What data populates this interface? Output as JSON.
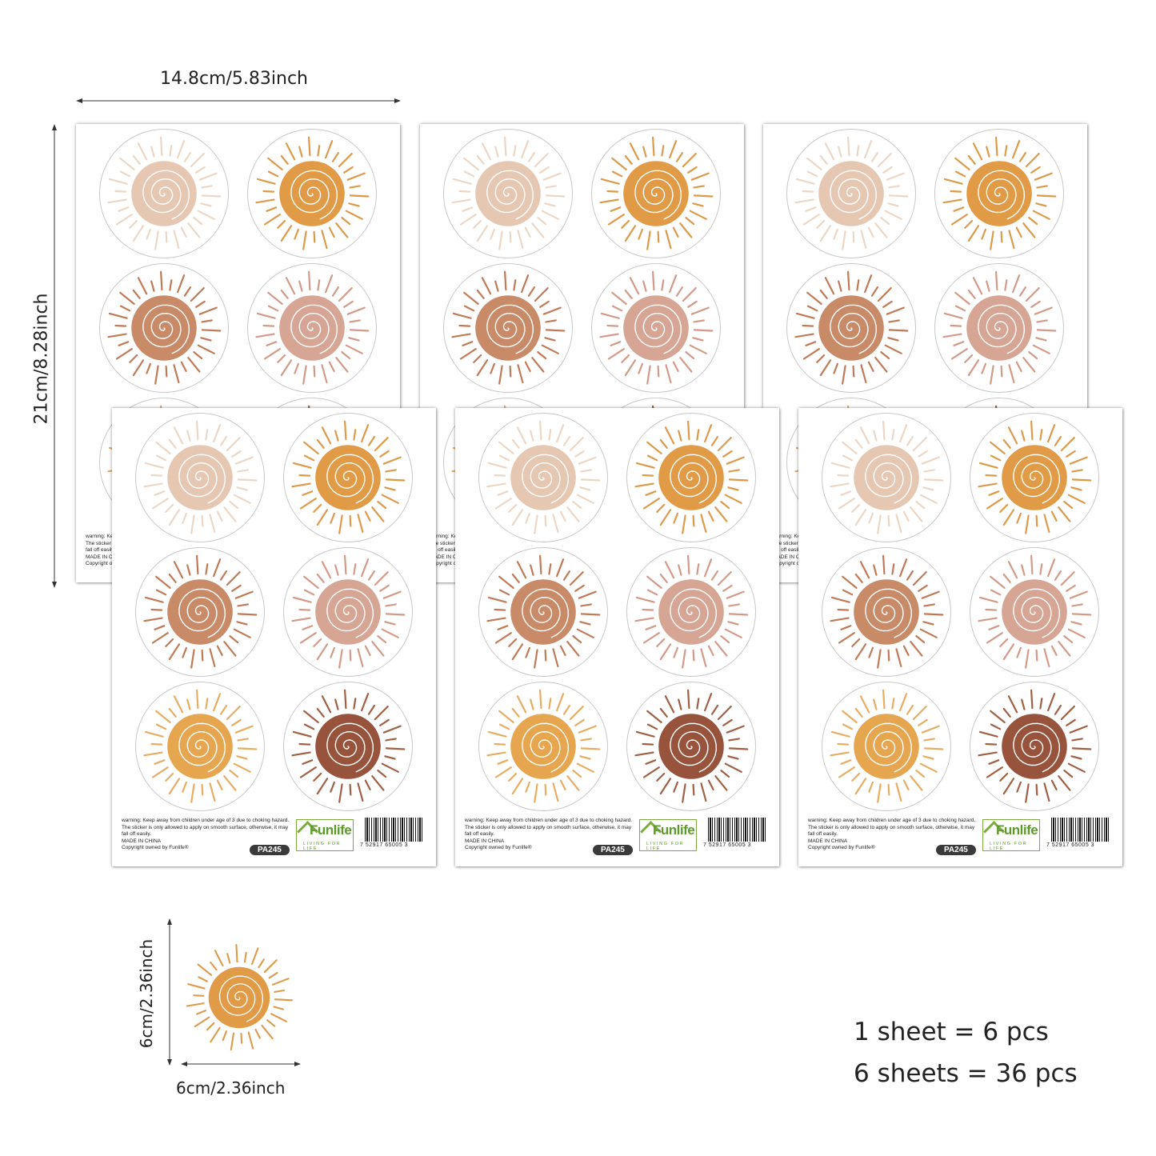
{
  "dimensions": {
    "sheet_width": "14.8cm/5.83inch",
    "sheet_height": "21cm/8.28inch",
    "sticker_height": "6cm/2.36inch",
    "sticker_width": "6cm/2.36inch"
  },
  "sheet": {
    "warning": "warning: Keep away from children under age of 3 due to choking hazard. The sticker is only allowed to apply on smooth surface, otherwise, it may fall off easily.",
    "made_in": "MADE IN CHINA",
    "copyright": "Copyright owned by Funlife®",
    "product_code": "PA245",
    "brand_logo": "Funlife",
    "brand_tagline": "LIVING FOR LIFE",
    "barcode_number": "7 52917 65005 3"
  },
  "sun_colors": [
    "#e6c8b2",
    "#e19a45",
    "#c98a68",
    "#d6a593",
    "#e6a64f",
    "#98533d"
  ],
  "ray_colors": [
    "#ecd7c6",
    "#dc9a4a",
    "#c07a58",
    "#d29a88",
    "#e6ad63",
    "#a06045"
  ],
  "quantity": {
    "line1": "1 sheet = 6 pcs",
    "line2": "6 sheets = 36 pcs"
  }
}
